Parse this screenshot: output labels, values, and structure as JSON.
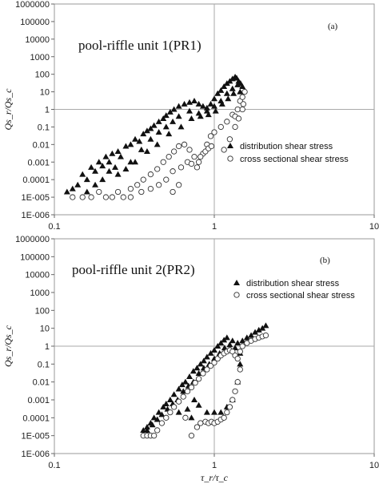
{
  "chart_data": [
    {
      "type": "scatter",
      "panel_label": "(a)",
      "annotation": "pool-riffle unit 1(PR1)",
      "xlabel": "τ_r/τ_c",
      "ylabel": "Qs_r/Qs_c",
      "xscale": "log",
      "yscale": "log",
      "xlim": [
        0.1,
        10
      ],
      "ylim": [
        1e-06,
        1000000
      ],
      "reference_lines": {
        "x": 1,
        "y": 1
      },
      "x_tick_labels": [
        "0.1",
        "1",
        "10"
      ],
      "y_tick_labels": [
        "1000000",
        "100000",
        "10000",
        "1000",
        "100",
        "10",
        "1",
        "0.1",
        "0.01",
        "0.001",
        "0.0001",
        "1E-005",
        "1E-006"
      ],
      "legend_position": "right-middle",
      "series": [
        {
          "name": "distribution shear stress",
          "marker": "filled-triangle",
          "points": [
            [
              0.12,
              2e-05
            ],
            [
              0.13,
              3e-05
            ],
            [
              0.14,
              5e-05
            ],
            [
              0.15,
              0.0002
            ],
            [
              0.16,
              0.0001
            ],
            [
              0.17,
              0.0005
            ],
            [
              0.18,
              0.0003
            ],
            [
              0.19,
              0.001
            ],
            [
              0.2,
              0.0006
            ],
            [
              0.21,
              0.002
            ],
            [
              0.22,
              0.001
            ],
            [
              0.23,
              0.003
            ],
            [
              0.25,
              0.004
            ],
            [
              0.26,
              0.002
            ],
            [
              0.28,
              0.008
            ],
            [
              0.3,
              0.01
            ],
            [
              0.32,
              0.02
            ],
            [
              0.34,
              0.015
            ],
            [
              0.36,
              0.04
            ],
            [
              0.38,
              0.06
            ],
            [
              0.4,
              0.08
            ],
            [
              0.42,
              0.12
            ],
            [
              0.45,
              0.2
            ],
            [
              0.48,
              0.3
            ],
            [
              0.5,
              0.45
            ],
            [
              0.53,
              0.7
            ],
            [
              0.56,
              1.0
            ],
            [
              0.6,
              1.5
            ],
            [
              0.65,
              2.0
            ],
            [
              0.7,
              2.5
            ],
            [
              0.75,
              3
            ],
            [
              0.8,
              2
            ],
            [
              0.85,
              1.5
            ],
            [
              0.9,
              1.2
            ],
            [
              0.95,
              2
            ],
            [
              1.0,
              4
            ],
            [
              1.05,
              8
            ],
            [
              1.1,
              12
            ],
            [
              1.15,
              20
            ],
            [
              1.2,
              30
            ],
            [
              1.25,
              40
            ],
            [
              1.3,
              55
            ],
            [
              1.35,
              70
            ],
            [
              1.38,
              60
            ],
            [
              1.42,
              40
            ],
            [
              1.46,
              30
            ],
            [
              1.5,
              20
            ],
            [
              0.2,
              0.0001
            ],
            [
              0.22,
              0.0003
            ],
            [
              0.24,
              0.0005
            ],
            [
              0.3,
              0.001
            ],
            [
              0.35,
              0.005
            ],
            [
              0.4,
              0.02
            ],
            [
              0.45,
              0.05
            ],
            [
              0.5,
              0.1
            ],
            [
              0.55,
              0.2
            ],
            [
              0.6,
              0.4
            ],
            [
              0.7,
              0.8
            ],
            [
              0.8,
              0.6
            ],
            [
              0.9,
              0.8
            ],
            [
              1.0,
              1.5
            ],
            [
              1.1,
              3
            ],
            [
              1.2,
              8
            ],
            [
              1.3,
              15
            ],
            [
              1.4,
              25
            ],
            [
              0.16,
              2e-05
            ],
            [
              0.18,
              5e-05
            ],
            [
              0.25,
              0.0002
            ],
            [
              0.28,
              0.0004
            ],
            [
              0.32,
              0.001
            ],
            [
              0.38,
              0.004
            ],
            [
              0.44,
              0.01
            ],
            [
              0.52,
              0.04
            ],
            [
              0.62,
              0.1
            ],
            [
              0.72,
              0.3
            ],
            [
              0.82,
              0.4
            ],
            [
              0.92,
              0.5
            ],
            [
              1.02,
              0.8
            ],
            [
              1.12,
              2
            ],
            [
              1.22,
              4
            ],
            [
              1.32,
              8
            ],
            [
              1.45,
              10
            ]
          ]
        },
        {
          "name": "cross sectional shear stress",
          "marker": "open-circle",
          "points": [
            [
              0.13,
              1e-05
            ],
            [
              0.15,
              1e-05
            ],
            [
              0.17,
              1e-05
            ],
            [
              0.19,
              2e-05
            ],
            [
              0.21,
              1e-05
            ],
            [
              0.23,
              1e-05
            ],
            [
              0.25,
              2e-05
            ],
            [
              0.27,
              1e-05
            ],
            [
              0.3,
              3e-05
            ],
            [
              0.33,
              5e-05
            ],
            [
              0.36,
              0.0001
            ],
            [
              0.4,
              0.0002
            ],
            [
              0.44,
              0.0004
            ],
            [
              0.48,
              0.001
            ],
            [
              0.52,
              0.002
            ],
            [
              0.56,
              0.004
            ],
            [
              0.6,
              0.008
            ],
            [
              0.65,
              0.01
            ],
            [
              0.7,
              0.005
            ],
            [
              0.75,
              0.002
            ],
            [
              0.8,
              0.001
            ],
            [
              0.85,
              0.003
            ],
            [
              0.9,
              0.01
            ],
            [
              0.95,
              0.03
            ],
            [
              1.0,
              0.05
            ],
            [
              1.1,
              0.1
            ],
            [
              1.2,
              0.2
            ],
            [
              1.3,
              0.5
            ],
            [
              1.35,
              0.4
            ],
            [
              1.4,
              1
            ],
            [
              1.45,
              3
            ],
            [
              1.5,
              5
            ],
            [
              1.55,
              10
            ],
            [
              0.45,
              5e-05
            ],
            [
              0.5,
              0.0001
            ],
            [
              0.55,
              0.0003
            ],
            [
              0.62,
              0.0005
            ],
            [
              0.68,
              0.001
            ],
            [
              0.72,
              0.0008
            ],
            [
              0.78,
              0.0005
            ],
            [
              0.82,
              0.002
            ],
            [
              0.88,
              0.004
            ],
            [
              0.92,
              0.006
            ],
            [
              0.96,
              0.008
            ],
            [
              1.15,
              0.005
            ],
            [
              1.25,
              0.02
            ],
            [
              1.35,
              0.1
            ],
            [
              1.42,
              0.3
            ],
            [
              1.5,
              1
            ],
            [
              1.52,
              2
            ],
            [
              0.35,
              2e-05
            ],
            [
              0.4,
              3e-05
            ],
            [
              0.3,
              1e-05
            ],
            [
              0.55,
              2e-05
            ],
            [
              0.6,
              5e-05
            ]
          ]
        }
      ]
    },
    {
      "type": "scatter",
      "panel_label": "(b)",
      "annotation": "pool-riffle unit 2(PR2)",
      "xlabel": "τ_r/τ_c",
      "ylabel": "Qs_r/Qs_c",
      "xscale": "log",
      "yscale": "log",
      "xlim": [
        0.1,
        10
      ],
      "ylim": [
        1e-06,
        1000000
      ],
      "reference_lines": {
        "x": 1,
        "y": 1
      },
      "x_tick_labels": [
        "0.1",
        "1",
        "10"
      ],
      "y_tick_labels": [
        "1000000",
        "100000",
        "10000",
        "1000",
        "100",
        "10",
        "1",
        "0.1",
        "0.01",
        "0.001",
        "0.0001",
        "1E-005",
        "1E-006"
      ],
      "legend_position": "top-right",
      "series": [
        {
          "name": "distribution shear stress",
          "marker": "filled-triangle",
          "points": [
            [
              0.36,
              2e-05
            ],
            [
              0.38,
              3e-05
            ],
            [
              0.4,
              5e-05
            ],
            [
              0.42,
              0.0001
            ],
            [
              0.45,
              0.0002
            ],
            [
              0.48,
              0.0004
            ],
            [
              0.5,
              0.0006
            ],
            [
              0.53,
              0.001
            ],
            [
              0.56,
              0.002
            ],
            [
              0.6,
              0.004
            ],
            [
              0.63,
              0.007
            ],
            [
              0.66,
              0.01
            ],
            [
              0.7,
              0.02
            ],
            [
              0.74,
              0.04
            ],
            [
              0.78,
              0.06
            ],
            [
              0.82,
              0.1
            ],
            [
              0.86,
              0.15
            ],
            [
              0.9,
              0.25
            ],
            [
              0.95,
              0.4
            ],
            [
              1.0,
              0.6
            ],
            [
              1.05,
              1.0
            ],
            [
              1.1,
              1.5
            ],
            [
              1.15,
              2.2
            ],
            [
              1.2,
              3
            ],
            [
              1.3,
              2
            ],
            [
              1.4,
              1.5
            ],
            [
              1.5,
              2
            ],
            [
              1.6,
              3
            ],
            [
              1.7,
              4
            ],
            [
              1.8,
              6
            ],
            [
              1.9,
              8
            ],
            [
              2.0,
              10
            ],
            [
              2.1,
              14
            ],
            [
              0.38,
              2e-05
            ],
            [
              0.41,
              4e-05
            ],
            [
              0.44,
              8e-05
            ],
            [
              0.47,
              0.00015
            ],
            [
              0.51,
              0.0003
            ],
            [
              0.55,
              0.0006
            ],
            [
              0.59,
              0.001
            ],
            [
              0.64,
              0.003
            ],
            [
              0.69,
              0.006
            ],
            [
              0.74,
              0.01
            ],
            [
              0.8,
              0.03
            ],
            [
              0.86,
              0.06
            ],
            [
              0.93,
              0.1
            ],
            [
              1.0,
              0.2
            ],
            [
              1.08,
              0.4
            ],
            [
              1.16,
              0.8
            ],
            [
              1.25,
              1.2
            ],
            [
              1.35,
              0.8
            ],
            [
              1.45,
              0.4
            ],
            [
              0.68,
              0.0003
            ],
            [
              0.72,
              0.0001
            ],
            [
              0.8,
              0.0005
            ],
            [
              0.9,
              0.0002
            ],
            [
              1.0,
              0.0002
            ],
            [
              1.1,
              0.0002
            ],
            [
              1.2,
              0.0004
            ],
            [
              1.3,
              0.001
            ],
            [
              1.4,
              0.01
            ],
            [
              1.45,
              0.1
            ],
            [
              0.75,
              0.001
            ],
            [
              0.6,
              0.0002
            ]
          ]
        },
        {
          "name": "cross sectional shear stress",
          "marker": "open-circle",
          "points": [
            [
              0.36,
              1e-05
            ],
            [
              0.38,
              1e-05
            ],
            [
              0.4,
              1e-05
            ],
            [
              0.42,
              1e-05
            ],
            [
              0.44,
              2e-05
            ],
            [
              0.47,
              5e-05
            ],
            [
              0.5,
              0.0001
            ],
            [
              0.53,
              0.0002
            ],
            [
              0.56,
              0.0004
            ],
            [
              0.6,
              0.0008
            ],
            [
              0.64,
              0.0015
            ],
            [
              0.68,
              0.003
            ],
            [
              0.72,
              0.005
            ],
            [
              0.76,
              0.009
            ],
            [
              0.8,
              0.015
            ],
            [
              0.85,
              0.03
            ],
            [
              0.9,
              0.05
            ],
            [
              0.95,
              0.08
            ],
            [
              1.0,
              0.12
            ],
            [
              1.05,
              0.2
            ],
            [
              1.1,
              0.3
            ],
            [
              1.15,
              0.4
            ],
            [
              1.2,
              0.5
            ],
            [
              1.25,
              0.6
            ],
            [
              1.3,
              0.5
            ],
            [
              1.35,
              0.3
            ],
            [
              1.4,
              0.2
            ],
            [
              1.45,
              0.5
            ],
            [
              1.5,
              1.0
            ],
            [
              1.6,
              1.5
            ],
            [
              1.7,
              2
            ],
            [
              1.8,
              2.5
            ],
            [
              1.9,
              3
            ],
            [
              2.0,
              3.5
            ],
            [
              2.1,
              4
            ],
            [
              0.72,
              1e-05
            ],
            [
              0.78,
              3e-05
            ],
            [
              0.82,
              5e-05
            ],
            [
              0.88,
              6e-05
            ],
            [
              0.92,
              5e-05
            ],
            [
              0.96,
              6e-05
            ],
            [
              1.0,
              5e-05
            ],
            [
              1.05,
              6e-05
            ],
            [
              1.1,
              8e-05
            ],
            [
              1.15,
              0.0001
            ],
            [
              1.2,
              0.0002
            ],
            [
              1.25,
              0.0004
            ],
            [
              1.3,
              0.001
            ],
            [
              1.35,
              0.003
            ],
            [
              1.4,
              0.01
            ],
            [
              1.45,
              0.05
            ],
            [
              0.66,
              0.0001
            ]
          ]
        }
      ]
    }
  ]
}
